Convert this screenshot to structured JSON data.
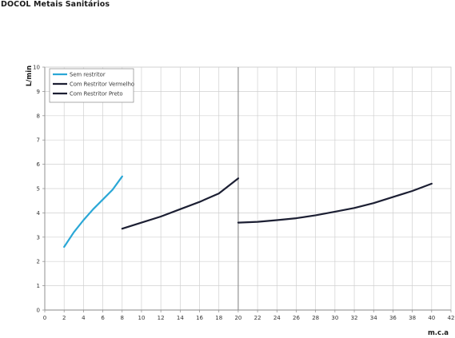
{
  "header": {
    "title": "DOCOL Metais Sanitários"
  },
  "chart_data": {
    "type": "line",
    "xlabel": "m.c.a",
    "ylabel": "L/min",
    "xlim": [
      0,
      42
    ],
    "ylim": [
      0,
      10
    ],
    "x_ticks": [
      0,
      2,
      4,
      6,
      8,
      10,
      12,
      14,
      16,
      18,
      20,
      22,
      24,
      26,
      28,
      30,
      32,
      34,
      36,
      38,
      40,
      42
    ],
    "y_ticks": [
      0,
      1,
      2,
      3,
      4,
      5,
      6,
      7,
      8,
      9,
      10
    ],
    "grid": true,
    "legend_position": "top-left",
    "series": [
      {
        "name": "Sem restritor",
        "color": "#2aa7d6",
        "points": [
          [
            2,
            2.6
          ],
          [
            3,
            3.2
          ],
          [
            4,
            3.7
          ],
          [
            5,
            4.15
          ],
          [
            6,
            4.55
          ],
          [
            7,
            4.95
          ],
          [
            8,
            5.5
          ]
        ]
      },
      {
        "name": "Com Restritor Vermelho",
        "color": "#1c1f33",
        "points": [
          [
            8,
            3.35
          ],
          [
            10,
            3.6
          ],
          [
            12,
            3.85
          ],
          [
            14,
            4.15
          ],
          [
            16,
            4.45
          ],
          [
            18,
            4.8
          ],
          [
            20,
            5.42
          ]
        ]
      },
      {
        "name": "Com Restritor Preto",
        "color": "#1c1f33",
        "points": [
          [
            20,
            3.6
          ],
          [
            22,
            3.63
          ],
          [
            24,
            3.7
          ],
          [
            26,
            3.78
          ],
          [
            28,
            3.9
          ],
          [
            30,
            4.05
          ],
          [
            32,
            4.2
          ],
          [
            34,
            4.4
          ],
          [
            36,
            4.65
          ],
          [
            38,
            4.9
          ],
          [
            40,
            5.2
          ]
        ]
      }
    ]
  }
}
